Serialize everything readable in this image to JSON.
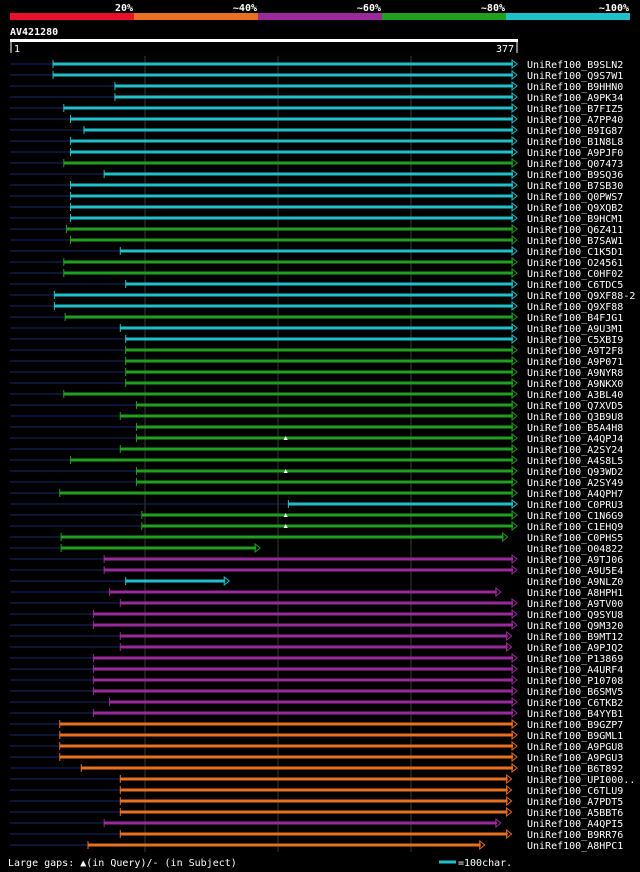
{
  "chart_data": {
    "type": "alignment-overview",
    "query_id": "AV421280",
    "query_start": "1",
    "query_end": "377",
    "query_length": 377,
    "legend": [
      {
        "label": "20%",
        "color": "#e8102a"
      },
      {
        "label": "~40%",
        "color": "#e87020"
      },
      {
        "label": "~60%",
        "color": "#9a2a9a"
      },
      {
        "label": "~80%",
        "color": "#20a020"
      },
      {
        "label": "~100%",
        "color": "#20c0c8"
      }
    ],
    "footer_gaps": "Large gaps: ▲(in Query)/- (in Subject)",
    "footer_scale": "=100char.",
    "hits": [
      {
        "id": "UniRef100_B9SLN2",
        "start": 32,
        "end": 377,
        "color": "#20c0c8"
      },
      {
        "id": "UniRef100_Q9S7W1",
        "start": 32,
        "end": 377,
        "color": "#20c0c8"
      },
      {
        "id": "UniRef100_B9HHN0",
        "start": 78,
        "end": 377,
        "color": "#20c0c8"
      },
      {
        "id": "UniRef100_A9PK34",
        "start": 78,
        "end": 377,
        "color": "#20c0c8"
      },
      {
        "id": "UniRef100_B7FIZ5",
        "start": 40,
        "end": 377,
        "color": "#20c0c8"
      },
      {
        "id": "UniRef100_A7PP40",
        "start": 45,
        "end": 377,
        "color": "#20c0c8"
      },
      {
        "id": "UniRef100_B9IG87",
        "start": 55,
        "end": 377,
        "color": "#20c0c8"
      },
      {
        "id": "UniRef100_B1N8L8",
        "start": 45,
        "end": 377,
        "color": "#20c0c8"
      },
      {
        "id": "UniRef100_A9PJF0",
        "start": 45,
        "end": 377,
        "color": "#20c0c8"
      },
      {
        "id": "UniRef100_Q07473",
        "start": 40,
        "end": 377,
        "color": "#20a020"
      },
      {
        "id": "UniRef100_B9SQ36",
        "start": 70,
        "end": 377,
        "color": "#20c0c8"
      },
      {
        "id": "UniRef100_B7SB30",
        "start": 45,
        "end": 377,
        "color": "#20c0c8"
      },
      {
        "id": "UniRef100_Q0PWS7",
        "start": 45,
        "end": 377,
        "color": "#20c0c8"
      },
      {
        "id": "UniRef100_Q9XQB2",
        "start": 45,
        "end": 377,
        "color": "#20c0c8"
      },
      {
        "id": "UniRef100_B9HCM1",
        "start": 45,
        "end": 377,
        "color": "#20c0c8"
      },
      {
        "id": "UniRef100_Q6Z411",
        "start": 42,
        "end": 377,
        "color": "#20a020"
      },
      {
        "id": "UniRef100_B7SAW1",
        "start": 45,
        "end": 377,
        "color": "#20a020"
      },
      {
        "id": "UniRef100_C1K5D1",
        "start": 82,
        "end": 377,
        "color": "#20c0c8"
      },
      {
        "id": "UniRef100_O24561",
        "start": 40,
        "end": 377,
        "color": "#20a020"
      },
      {
        "id": "UniRef100_C0HF02",
        "start": 40,
        "end": 377,
        "color": "#20a020"
      },
      {
        "id": "UniRef100_C6TDC5",
        "start": 86,
        "end": 377,
        "color": "#20c0c8"
      },
      {
        "id": "UniRef100_Q9XF88-2",
        "start": 33,
        "end": 377,
        "color": "#20c0c8"
      },
      {
        "id": "UniRef100_Q9XF88",
        "start": 33,
        "end": 377,
        "color": "#20c0c8"
      },
      {
        "id": "UniRef100_B4FJG1",
        "start": 41,
        "end": 377,
        "color": "#20a020"
      },
      {
        "id": "UniRef100_A9U3M1",
        "start": 82,
        "end": 377,
        "color": "#20c0c8"
      },
      {
        "id": "UniRef100_C5XBI9",
        "start": 86,
        "end": 377,
        "color": "#20c0c8"
      },
      {
        "id": "UniRef100_A9T2F8",
        "start": 86,
        "end": 377,
        "color": "#20a020"
      },
      {
        "id": "UniRef100_A9P071",
        "start": 86,
        "end": 377,
        "color": "#20a020"
      },
      {
        "id": "UniRef100_A9NYR8",
        "start": 86,
        "end": 377,
        "color": "#20a020"
      },
      {
        "id": "UniRef100_A9NKX0",
        "start": 86,
        "end": 377,
        "color": "#20a020"
      },
      {
        "id": "UniRef100_A3BL40",
        "start": 40,
        "end": 377,
        "color": "#20a020"
      },
      {
        "id": "UniRef100_Q7XVD5",
        "start": 94,
        "end": 377,
        "color": "#20a020"
      },
      {
        "id": "UniRef100_Q3B9U8",
        "start": 82,
        "end": 377,
        "color": "#20a020"
      },
      {
        "id": "UniRef100_B5A4H8",
        "start": 94,
        "end": 377,
        "color": "#20a020"
      },
      {
        "id": "UniRef100_A4QPJ4",
        "start": 94,
        "end": 377,
        "color": "#20a020",
        "gap_query": true
      },
      {
        "id": "UniRef100_A2SY24",
        "start": 82,
        "end": 377,
        "color": "#20a020"
      },
      {
        "id": "UniRef100_A4S8L5",
        "start": 45,
        "end": 377,
        "color": "#20a020"
      },
      {
        "id": "UniRef100_Q93WD2",
        "start": 94,
        "end": 377,
        "color": "#20a020",
        "gap_query": true
      },
      {
        "id": "UniRef100_A2SY49",
        "start": 94,
        "end": 377,
        "color": "#20a020"
      },
      {
        "id": "UniRef100_A4QPH7",
        "start": 37,
        "end": 377,
        "color": "#20a020"
      },
      {
        "id": "UniRef100_C0PRU3",
        "start": 207,
        "end": 377,
        "color": "#20c0c8"
      },
      {
        "id": "UniRef100_C1N6G9",
        "start": 98,
        "end": 377,
        "color": "#20a020",
        "gap_query": true
      },
      {
        "id": "UniRef100_C1EHQ9",
        "start": 98,
        "end": 377,
        "color": "#20a020",
        "gap_query": true
      },
      {
        "id": "UniRef100_C0PHS5",
        "start": 38,
        "end": 370,
        "color": "#20a020"
      },
      {
        "id": "UniRef100_O04822",
        "start": 38,
        "end": 186,
        "color": "#20a020"
      },
      {
        "id": "UniRef100_A9TJ06",
        "start": 70,
        "end": 377,
        "color": "#9a2a9a"
      },
      {
        "id": "UniRef100_A9U5E4",
        "start": 70,
        "end": 377,
        "color": "#9a2a9a"
      },
      {
        "id": "UniRef100_A9NLZ0",
        "start": 86,
        "end": 163,
        "color": "#20c0c8"
      },
      {
        "id": "UniRef100_A8HPH1",
        "start": 74,
        "end": 365,
        "color": "#9a2a9a"
      },
      {
        "id": "UniRef100_A9TV00",
        "start": 82,
        "end": 377,
        "color": "#9a2a9a"
      },
      {
        "id": "UniRef100_Q9SYU8",
        "start": 62,
        "end": 377,
        "color": "#9a2a9a"
      },
      {
        "id": "UniRef100_Q9M320",
        "start": 62,
        "end": 377,
        "color": "#9a2a9a"
      },
      {
        "id": "UniRef100_B9MT12",
        "start": 82,
        "end": 373,
        "color": "#9a2a9a"
      },
      {
        "id": "UniRef100_A9PJQ2",
        "start": 82,
        "end": 373,
        "color": "#9a2a9a"
      },
      {
        "id": "UniRef100_P13869",
        "start": 62,
        "end": 377,
        "color": "#9a2a9a"
      },
      {
        "id": "UniRef100_A4URF4",
        "start": 62,
        "end": 377,
        "color": "#9a2a9a"
      },
      {
        "id": "UniRef100_P10708",
        "start": 62,
        "end": 377,
        "color": "#9a2a9a"
      },
      {
        "id": "UniRef100_B6SMV5",
        "start": 62,
        "end": 377,
        "color": "#9a2a9a"
      },
      {
        "id": "UniRef100_C6TKB2",
        "start": 74,
        "end": 377,
        "color": "#9a2a9a"
      },
      {
        "id": "UniRef100_B4YYB1",
        "start": 62,
        "end": 377,
        "color": "#9a2a9a"
      },
      {
        "id": "UniRef100_B9GZP7",
        "start": 37,
        "end": 377,
        "color": "#e87020"
      },
      {
        "id": "UniRef100_B9GML1",
        "start": 37,
        "end": 377,
        "color": "#e87020"
      },
      {
        "id": "UniRef100_A9PGU8",
        "start": 37,
        "end": 377,
        "color": "#e87020"
      },
      {
        "id": "UniRef100_A9PGU3",
        "start": 37,
        "end": 377,
        "color": "#e87020"
      },
      {
        "id": "UniRef100_B6T892",
        "start": 53,
        "end": 377,
        "color": "#e87020"
      },
      {
        "id": "UniRef100_UPI000..",
        "start": 82,
        "end": 373,
        "color": "#e87020"
      },
      {
        "id": "UniRef100_C6TLU9",
        "start": 82,
        "end": 373,
        "color": "#e87020"
      },
      {
        "id": "UniRef100_A7PDT5",
        "start": 82,
        "end": 373,
        "color": "#e87020"
      },
      {
        "id": "UniRef100_A5BBT6",
        "start": 82,
        "end": 373,
        "color": "#e87020"
      },
      {
        "id": "UniRef100_A4QPI5",
        "start": 70,
        "end": 365,
        "color": "#9a2a9a"
      },
      {
        "id": "UniRef100_B9RR76",
        "start": 82,
        "end": 373,
        "color": "#e87020"
      },
      {
        "id": "UniRef100_A8HPC1",
        "start": 58,
        "end": 353,
        "color": "#e87020"
      }
    ]
  }
}
